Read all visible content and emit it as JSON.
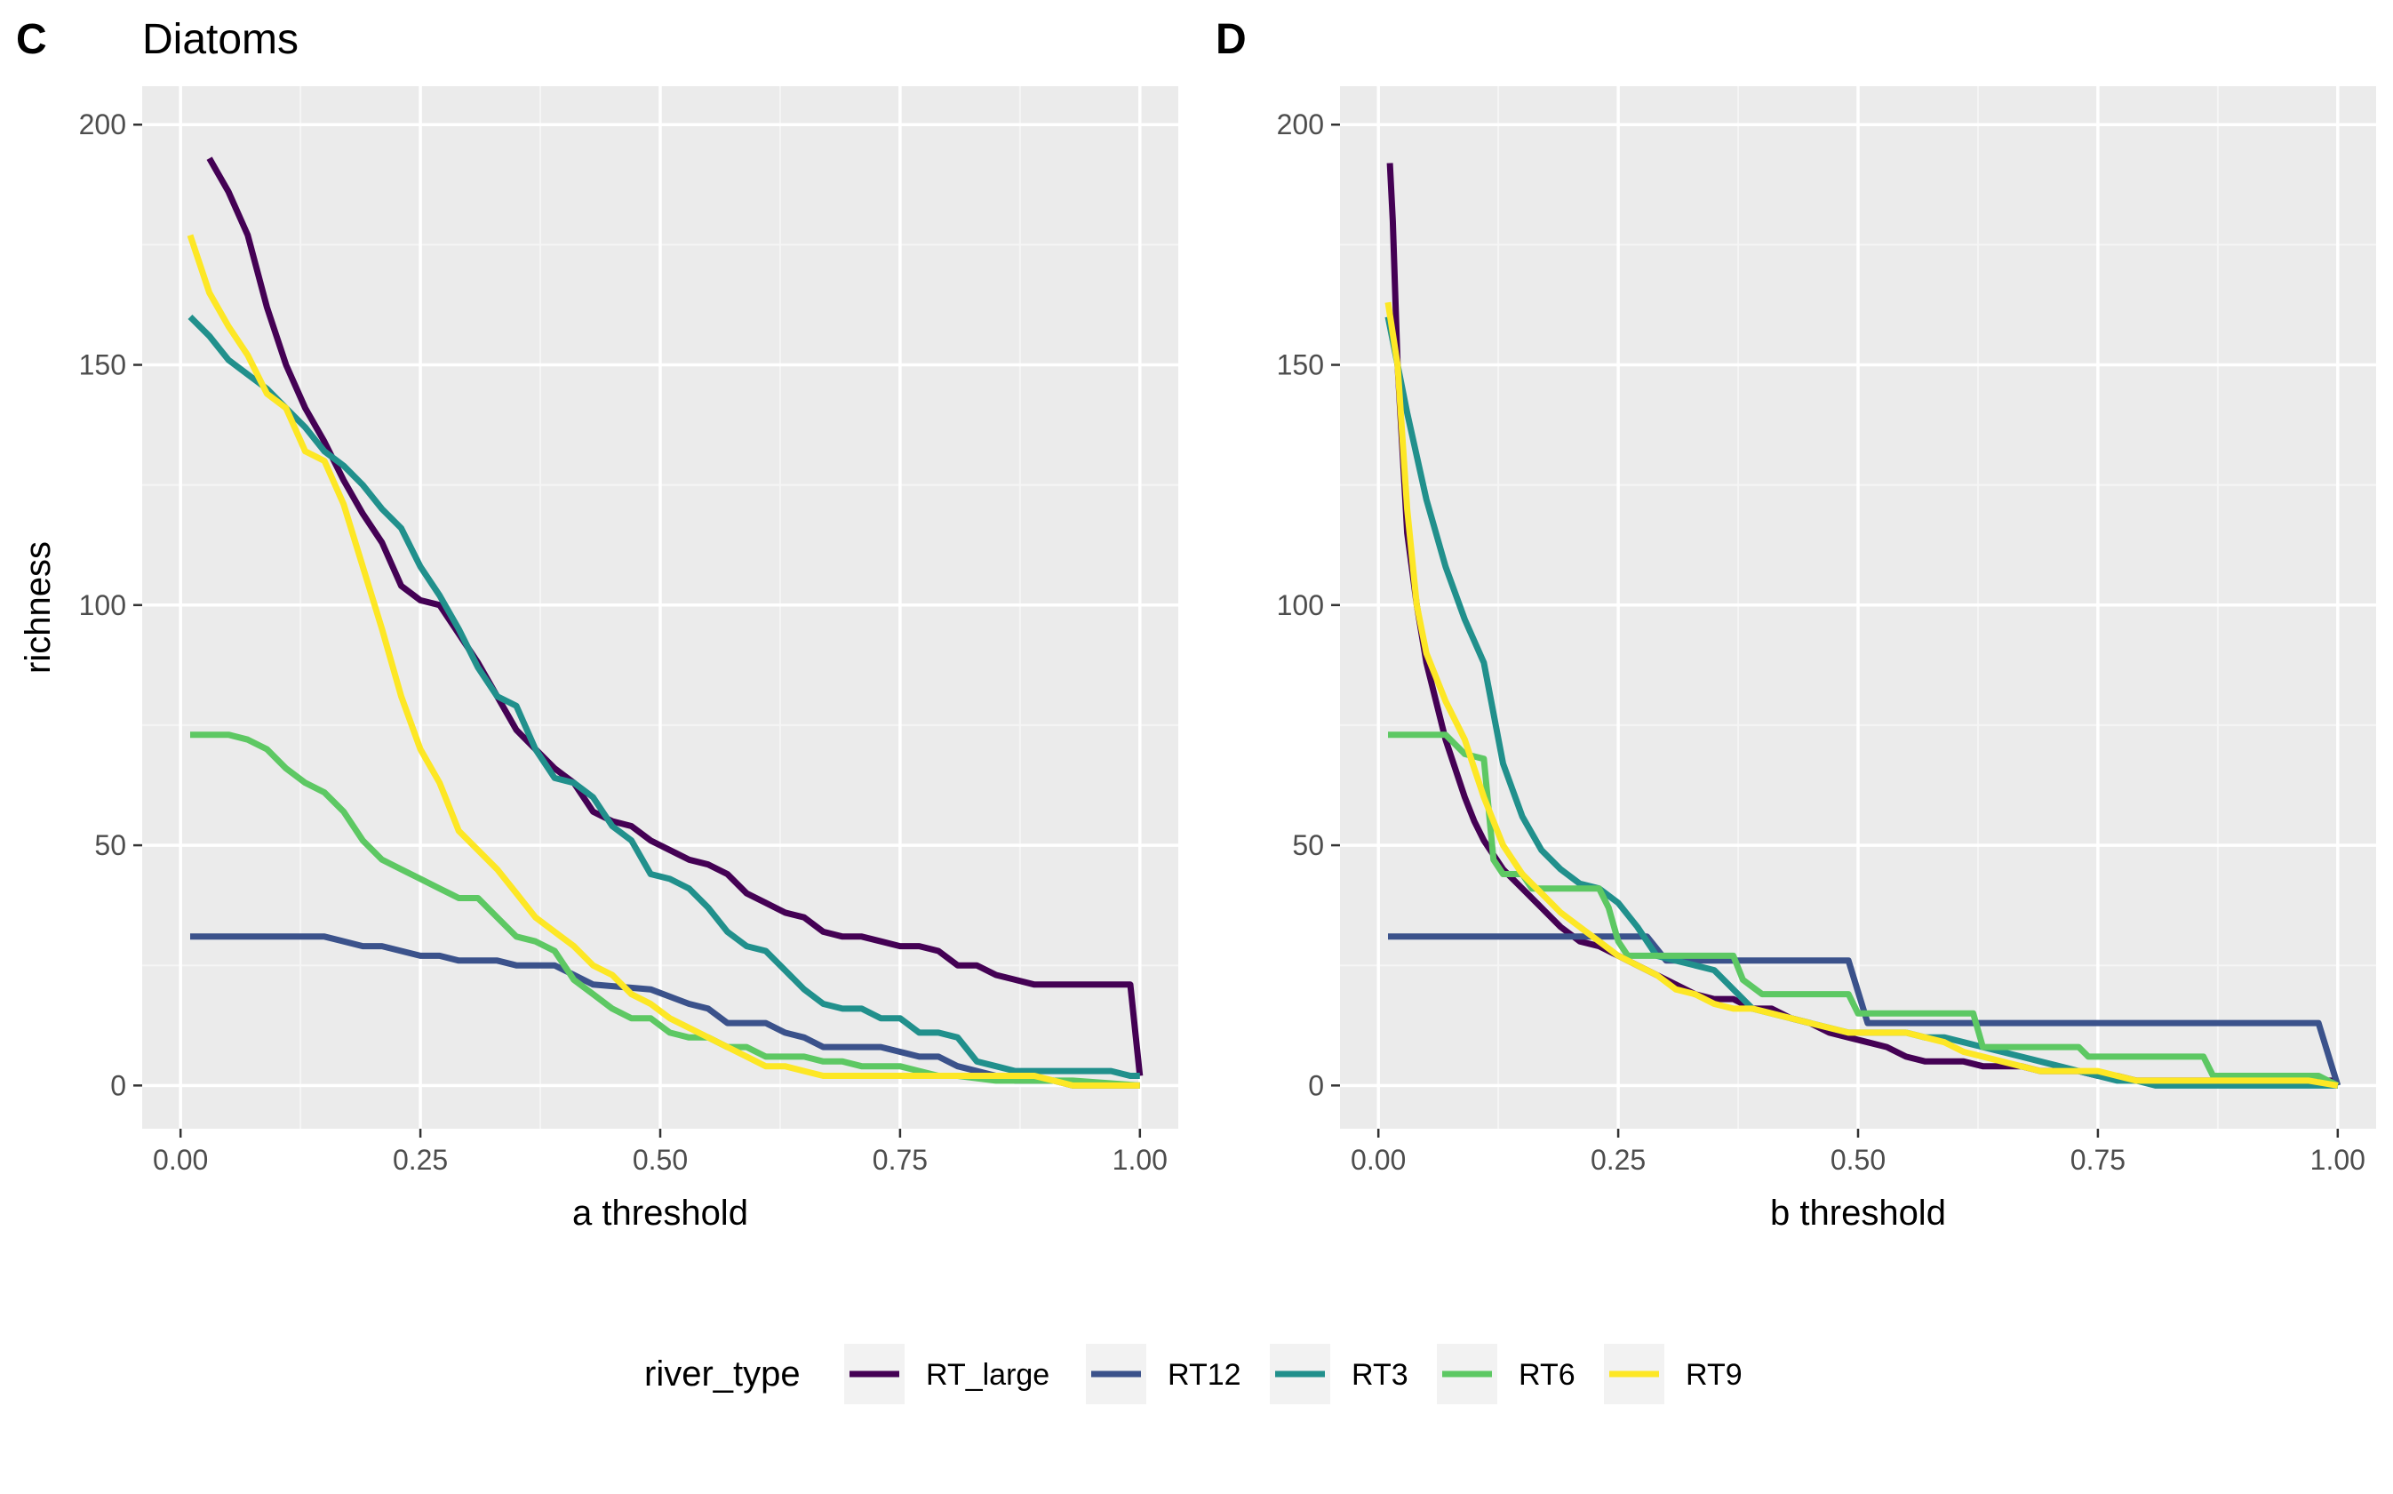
{
  "chart_data": [
    {
      "type": "line",
      "panel_tag": "C",
      "title": "Diatoms",
      "xlabel": "a threshold",
      "ylabel": "richness",
      "xlim": [
        -0.04,
        1.04
      ],
      "ylim": [
        -9,
        208
      ],
      "xticks": [
        "0.00",
        "0.25",
        "0.50",
        "0.75",
        "1.00"
      ],
      "yticks": [
        "0",
        "50",
        "100",
        "150",
        "200"
      ],
      "series": [
        {
          "name": "RT_large",
          "x": [
            0.03,
            0.05,
            0.07,
            0.09,
            0.11,
            0.13,
            0.15,
            0.17,
            0.19,
            0.21,
            0.23,
            0.25,
            0.27,
            0.29,
            0.31,
            0.33,
            0.35,
            0.37,
            0.39,
            0.41,
            0.43,
            0.45,
            0.47,
            0.49,
            0.51,
            0.53,
            0.55,
            0.57,
            0.59,
            0.61,
            0.63,
            0.65,
            0.67,
            0.69,
            0.71,
            0.73,
            0.75,
            0.77,
            0.79,
            0.81,
            0.83,
            0.85,
            0.87,
            0.89,
            0.91,
            0.93,
            0.95,
            0.97,
            0.99,
            1.0
          ],
          "y": [
            193,
            186,
            177,
            162,
            150,
            141,
            134,
            126,
            119,
            113,
            104,
            101,
            100,
            94,
            88,
            81,
            74,
            70,
            66,
            63,
            57,
            55,
            54,
            51,
            49,
            47,
            46,
            44,
            40,
            38,
            36,
            35,
            32,
            31,
            31,
            30,
            29,
            29,
            28,
            25,
            25,
            23,
            22,
            21,
            21,
            21,
            21,
            21,
            21,
            2
          ]
        },
        {
          "name": "RT12",
          "x": [
            0.01,
            0.15,
            0.19,
            0.21,
            0.25,
            0.27,
            0.29,
            0.33,
            0.35,
            0.39,
            0.43,
            0.49,
            0.53,
            0.55,
            0.57,
            0.61,
            0.63,
            0.65,
            0.67,
            0.73,
            0.75,
            0.77,
            0.79,
            0.81,
            0.85,
            0.87,
            0.91,
            0.93,
            1.0
          ],
          "y": [
            31,
            31,
            29,
            29,
            27,
            27,
            26,
            26,
            25,
            25,
            21,
            20,
            17,
            16,
            13,
            13,
            11,
            10,
            8,
            8,
            7,
            6,
            6,
            4,
            2,
            1,
            1,
            0,
            0
          ]
        },
        {
          "name": "RT3",
          "x": [
            0.01,
            0.03,
            0.05,
            0.07,
            0.09,
            0.11,
            0.13,
            0.15,
            0.17,
            0.19,
            0.21,
            0.23,
            0.25,
            0.27,
            0.29,
            0.31,
            0.33,
            0.35,
            0.37,
            0.39,
            0.41,
            0.43,
            0.45,
            0.47,
            0.49,
            0.51,
            0.53,
            0.55,
            0.57,
            0.59,
            0.61,
            0.63,
            0.65,
            0.67,
            0.69,
            0.71,
            0.73,
            0.75,
            0.77,
            0.79,
            0.81,
            0.83,
            0.85,
            0.87,
            0.89,
            0.91,
            0.93,
            0.95,
            0.97,
            0.99,
            1.0
          ],
          "y": [
            160,
            156,
            151,
            148,
            145,
            141,
            137,
            132,
            129,
            125,
            120,
            116,
            108,
            102,
            95,
            87,
            81,
            79,
            70,
            64,
            63,
            60,
            54,
            51,
            44,
            43,
            41,
            37,
            32,
            29,
            28,
            24,
            20,
            17,
            16,
            16,
            14,
            14,
            11,
            11,
            10,
            5,
            4,
            3,
            3,
            3,
            3,
            3,
            3,
            2,
            2
          ]
        },
        {
          "name": "RT6",
          "x": [
            0.01,
            0.03,
            0.05,
            0.07,
            0.09,
            0.11,
            0.13,
            0.15,
            0.17,
            0.19,
            0.21,
            0.23,
            0.25,
            0.27,
            0.29,
            0.31,
            0.33,
            0.35,
            0.37,
            0.39,
            0.41,
            0.43,
            0.45,
            0.47,
            0.49,
            0.51,
            0.53,
            0.55,
            0.57,
            0.59,
            0.61,
            0.63,
            0.65,
            0.67,
            0.69,
            0.71,
            0.73,
            0.75,
            0.77,
            0.79,
            0.81,
            0.85,
            0.89,
            0.93,
            1.0
          ],
          "y": [
            73,
            73,
            73,
            72,
            70,
            66,
            63,
            61,
            57,
            51,
            47,
            45,
            43,
            41,
            39,
            39,
            35,
            31,
            30,
            28,
            22,
            19,
            16,
            14,
            14,
            11,
            10,
            10,
            8,
            8,
            6,
            6,
            6,
            5,
            5,
            4,
            4,
            4,
            3,
            2,
            2,
            1,
            1,
            1,
            0
          ]
        },
        {
          "name": "RT9",
          "x": [
            0.01,
            0.03,
            0.05,
            0.07,
            0.09,
            0.11,
            0.13,
            0.15,
            0.17,
            0.19,
            0.21,
            0.23,
            0.25,
            0.27,
            0.29,
            0.31,
            0.33,
            0.35,
            0.37,
            0.39,
            0.41,
            0.43,
            0.45,
            0.47,
            0.49,
            0.51,
            0.53,
            0.55,
            0.57,
            0.59,
            0.61,
            0.63,
            0.65,
            0.67,
            0.69,
            0.71,
            0.73,
            0.75,
            0.77,
            0.79,
            0.81,
            0.83,
            0.85,
            0.87,
            0.89,
            0.91,
            0.93,
            0.95,
            0.97,
            0.99,
            1.0
          ],
          "y": [
            177,
            165,
            158,
            152,
            144,
            141,
            132,
            130,
            121,
            108,
            95,
            81,
            70,
            63,
            53,
            49,
            45,
            40,
            35,
            32,
            29,
            25,
            23,
            19,
            17,
            14,
            12,
            10,
            8,
            6,
            4,
            4,
            3,
            2,
            2,
            2,
            2,
            2,
            2,
            2,
            2,
            2,
            2,
            2,
            2,
            1,
            0,
            0,
            0,
            0,
            0
          ]
        }
      ]
    },
    {
      "type": "line",
      "panel_tag": "D",
      "title": "",
      "xlabel": "b threshold",
      "ylabel": "",
      "xlim": [
        -0.04,
        1.04
      ],
      "ylim": [
        -9,
        208
      ],
      "xticks": [
        "0.00",
        "0.25",
        "0.50",
        "0.75",
        "1.00"
      ],
      "yticks": [
        "0",
        "50",
        "100",
        "150",
        "200"
      ],
      "series": [
        {
          "name": "RT_large",
          "x": [
            0.012,
            0.015,
            0.02,
            0.03,
            0.04,
            0.05,
            0.06,
            0.07,
            0.08,
            0.09,
            0.1,
            0.11,
            0.12,
            0.13,
            0.15,
            0.17,
            0.19,
            0.21,
            0.23,
            0.25,
            0.27,
            0.29,
            0.31,
            0.33,
            0.35,
            0.37,
            0.39,
            0.41,
            0.43,
            0.45,
            0.47,
            0.49,
            0.51,
            0.53,
            0.55,
            0.57,
            0.59,
            0.61,
            0.63,
            0.65,
            0.67,
            0.69,
            0.71,
            0.73,
            0.75,
            0.77,
            0.79,
            0.81,
            1.0
          ],
          "y": [
            192,
            180,
            150,
            115,
            100,
            88,
            80,
            72,
            66,
            60,
            55,
            51,
            48,
            45,
            41,
            37,
            33,
            30,
            29,
            27,
            25,
            23,
            21,
            19,
            18,
            18,
            16,
            16,
            14,
            13,
            11,
            10,
            9,
            8,
            6,
            5,
            5,
            5,
            4,
            4,
            4,
            3,
            3,
            3,
            2,
            2,
            1,
            1,
            1
          ]
        },
        {
          "name": "RT12",
          "x": [
            0.01,
            0.28,
            0.3,
            0.49,
            0.51,
            0.98,
            1.0
          ],
          "y": [
            31,
            31,
            26,
            26,
            13,
            13,
            0
          ]
        },
        {
          "name": "RT3",
          "x": [
            0.01,
            0.02,
            0.03,
            0.05,
            0.07,
            0.09,
            0.11,
            0.13,
            0.15,
            0.17,
            0.19,
            0.21,
            0.23,
            0.25,
            0.27,
            0.29,
            0.31,
            0.33,
            0.35,
            0.37,
            0.39,
            0.41,
            0.43,
            0.45,
            0.47,
            0.49,
            0.51,
            0.53,
            0.55,
            0.57,
            0.59,
            0.61,
            0.63,
            0.65,
            0.67,
            0.69,
            0.71,
            0.73,
            0.75,
            0.77,
            0.79,
            0.81,
            0.85,
            0.89,
            0.93,
            0.97,
            1.0
          ],
          "y": [
            160,
            150,
            140,
            122,
            108,
            97,
            88,
            67,
            56,
            49,
            45,
            42,
            41,
            38,
            33,
            27,
            26,
            25,
            24,
            20,
            16,
            15,
            14,
            13,
            12,
            11,
            11,
            11,
            11,
            10,
            10,
            9,
            8,
            7,
            6,
            5,
            4,
            3,
            2,
            1,
            1,
            0,
            0,
            0,
            0,
            0,
            0
          ]
        },
        {
          "name": "RT6",
          "x": [
            0.01,
            0.07,
            0.09,
            0.11,
            0.12,
            0.13,
            0.15,
            0.16,
            0.17,
            0.23,
            0.24,
            0.25,
            0.26,
            0.37,
            0.38,
            0.4,
            0.42,
            0.49,
            0.5,
            0.62,
            0.63,
            0.73,
            0.74,
            0.86,
            0.87,
            0.98,
            1.0
          ],
          "y": [
            73,
            73,
            69,
            68,
            47,
            44,
            44,
            41,
            41,
            41,
            37,
            30,
            27,
            27,
            22,
            19,
            19,
            19,
            15,
            15,
            8,
            8,
            6,
            6,
            2,
            2,
            0
          ]
        },
        {
          "name": "RT9",
          "x": [
            0.01,
            0.02,
            0.03,
            0.04,
            0.05,
            0.07,
            0.09,
            0.1,
            0.11,
            0.12,
            0.13,
            0.15,
            0.17,
            0.19,
            0.21,
            0.23,
            0.25,
            0.27,
            0.29,
            0.31,
            0.33,
            0.35,
            0.37,
            0.39,
            0.41,
            0.43,
            0.45,
            0.47,
            0.49,
            0.51,
            0.53,
            0.55,
            0.57,
            0.59,
            0.61,
            0.63,
            0.65,
            0.67,
            0.69,
            0.71,
            0.73,
            0.75,
            0.77,
            0.79,
            0.81,
            0.85,
            0.89,
            0.93,
            0.97,
            1.0
          ],
          "y": [
            163,
            150,
            120,
            100,
            90,
            80,
            72,
            66,
            60,
            55,
            50,
            44,
            40,
            36,
            33,
            30,
            27,
            25,
            23,
            20,
            19,
            17,
            16,
            16,
            15,
            14,
            13,
            12,
            11,
            11,
            11,
            11,
            10,
            9,
            7,
            6,
            5,
            4,
            3,
            3,
            3,
            3,
            2,
            1,
            1,
            1,
            1,
            1,
            1,
            0
          ]
        }
      ]
    }
  ],
  "legend": {
    "title": "river_type",
    "items": [
      {
        "name": "RT_large",
        "color": "#440154"
      },
      {
        "name": "RT12",
        "color": "#3B528B"
      },
      {
        "name": "RT3",
        "color": "#21908C"
      },
      {
        "name": "RT6",
        "color": "#5DC863"
      },
      {
        "name": "RT9",
        "color": "#FDE725"
      }
    ]
  },
  "colors": {
    "panel_background": "#EBEBEB",
    "grid_major": "#FFFFFF",
    "grid_minor": "#F5F5F5",
    "tick_text": "#4D4D4D",
    "tick_mark": "#333333"
  }
}
